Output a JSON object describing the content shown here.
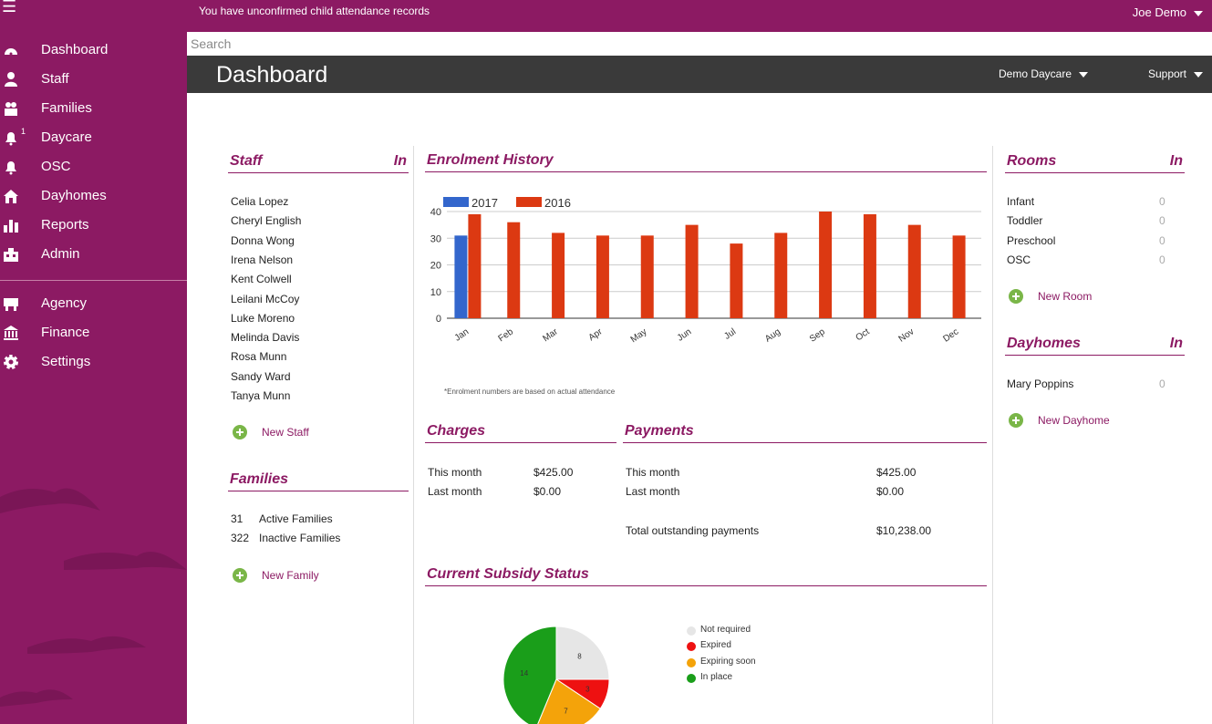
{
  "topbar": {
    "notice": "You have unconfirmed child attendance records",
    "user": "Joe Demo"
  },
  "search": {
    "placeholder": "Search"
  },
  "header": {
    "title": "Dashboard",
    "daycare": "Demo Daycare",
    "support": "Support"
  },
  "sidebar": {
    "items": [
      {
        "label": "Dashboard",
        "icon": "dashboard-icon"
      },
      {
        "label": "Staff",
        "icon": "user-icon"
      },
      {
        "label": "Families",
        "icon": "families-icon"
      },
      {
        "label": "Daycare",
        "icon": "bell-icon",
        "badge": "1"
      },
      {
        "label": "OSC",
        "icon": "bell-icon"
      },
      {
        "label": "Dayhomes",
        "icon": "house-icon"
      },
      {
        "label": "Reports",
        "icon": "bar-chart-icon"
      },
      {
        "label": "Admin",
        "icon": "building-icon"
      },
      {
        "label": "Agency",
        "icon": "agency-icon"
      },
      {
        "label": "Finance",
        "icon": "bank-icon"
      },
      {
        "label": "Settings",
        "icon": "gear-icon"
      }
    ]
  },
  "staff": {
    "title": "Staff",
    "in_label": "In",
    "names": [
      "Celia Lopez",
      "Cheryl English",
      "Donna Wong",
      "Irena Nelson",
      "Kent Colwell",
      "Leilani McCoy",
      "Luke Moreno",
      "Melinda Davis",
      "Rosa Munn",
      "Sandy Ward",
      "Tanya Munn"
    ],
    "add_label": "New Staff"
  },
  "families": {
    "title": "Families",
    "rows": [
      {
        "count": "31",
        "label": "Active Families"
      },
      {
        "count": "322",
        "label": "Inactive Families"
      }
    ],
    "add_label": "New Family"
  },
  "enrolment": {
    "title": "Enrolment History",
    "footnote": "*Enrolment numbers are based on actual attendance",
    "chart_data": {
      "type": "bar",
      "categories": [
        "Jan",
        "Feb",
        "Mar",
        "Apr",
        "May",
        "Jun",
        "Jul",
        "Aug",
        "Sep",
        "Oct",
        "Nov",
        "Dec"
      ],
      "series": [
        {
          "name": "2017",
          "color": "#3366cc",
          "values": [
            31,
            null,
            null,
            null,
            null,
            null,
            null,
            null,
            null,
            null,
            null,
            null
          ]
        },
        {
          "name": "2016",
          "color": "#dc3912",
          "values": [
            39,
            36,
            32,
            31,
            31,
            35,
            28,
            32,
            40,
            39,
            35,
            31
          ]
        }
      ],
      "yticks": [
        "0",
        "10",
        "20",
        "30",
        "40"
      ],
      "ylim": [
        0,
        40
      ],
      "legend": "top-left"
    }
  },
  "charges": {
    "title": "Charges",
    "rows": [
      {
        "label": "This month",
        "value": "$425.00"
      },
      {
        "label": "Last month",
        "value": "$0.00"
      }
    ]
  },
  "payments": {
    "title": "Payments",
    "rows": [
      {
        "label": "This month",
        "value": "$425.00"
      },
      {
        "label": "Last month",
        "value": "$0.00"
      }
    ],
    "total_label": "Total outstanding payments",
    "total_value": "$10,238.00"
  },
  "subsidy": {
    "title": "Current Subsidy Status",
    "chart_data": {
      "type": "pie",
      "slices": [
        {
          "label": "Not required",
          "value": 8,
          "color": "#e6e6e6"
        },
        {
          "label": "Expired",
          "value": 3,
          "color": "#ee1111"
        },
        {
          "label": "Expiring soon",
          "value": 7,
          "color": "#f4a30a"
        },
        {
          "label": "In place",
          "value": 14,
          "color": "#1a9e1a"
        }
      ],
      "legend": "right"
    }
  },
  "rooms": {
    "title": "Rooms",
    "in_label": "In",
    "rows": [
      {
        "name": "Infant",
        "count": "0"
      },
      {
        "name": "Toddler",
        "count": "0"
      },
      {
        "name": "Preschool",
        "count": "0"
      },
      {
        "name": "OSC",
        "count": "0"
      }
    ],
    "add_label": "New Room"
  },
  "dayhomes": {
    "title": "Dayhomes",
    "in_label": "In",
    "rows": [
      {
        "name": "Mary Poppins",
        "count": "0"
      }
    ],
    "add_label": "New Dayhome"
  }
}
